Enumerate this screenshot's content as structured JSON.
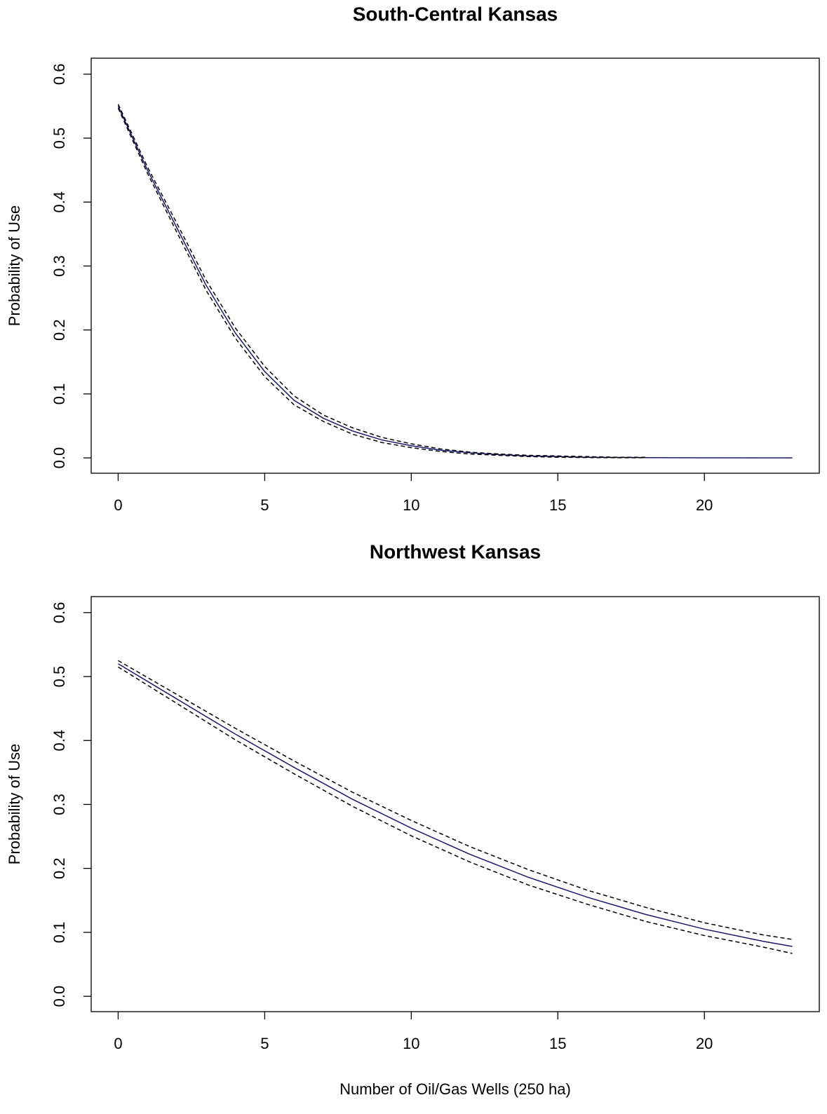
{
  "chart_data": [
    {
      "type": "line",
      "title": "South-Central Kansas",
      "y_label": "Probability of Use",
      "x": [
        0,
        1,
        2,
        3,
        4,
        5,
        6,
        7,
        8,
        9,
        10,
        11,
        12,
        13,
        14,
        15,
        16,
        17,
        18,
        20,
        23
      ],
      "series": [
        {
          "color": "#191970",
          "linestyle": "solid",
          "values": [
            0.55,
            0.45,
            0.36,
            0.27,
            0.195,
            0.135,
            0.09,
            0.062,
            0.042,
            0.028,
            0.019,
            0.012,
            0.008,
            0.005,
            0.003,
            0.002,
            0.001,
            0.0007,
            0.0004,
            0.0001,
            0
          ]
        },
        {
          "color": "#000000",
          "linestyle": "dashed",
          "values": [
            0.553,
            0.455,
            0.367,
            0.278,
            0.203,
            0.143,
            0.097,
            0.067,
            0.047,
            0.032,
            0.022,
            0.014,
            0.009,
            0.006,
            0.004,
            0.003,
            0.002,
            0.001,
            0.001,
            null,
            null
          ]
        },
        {
          "color": "#000000",
          "linestyle": "dashed",
          "values": [
            0.547,
            0.445,
            0.353,
            0.262,
            0.187,
            0.127,
            0.083,
            0.057,
            0.037,
            0.024,
            0.016,
            0.01,
            0.006,
            0.004,
            0.002,
            0.001,
            0.0005,
            0.0003,
            0.0002,
            null,
            null
          ]
        }
      ],
      "xlim": [
        -0.92,
        23.92
      ],
      "xticks": [
        0,
        5,
        10,
        15,
        20
      ],
      "ylim": [
        -0.024,
        0.625
      ],
      "yticks": [
        {
          "value": 0,
          "label": "0.0"
        },
        {
          "value": 0.1,
          "label": "0.1"
        },
        {
          "value": 0.2,
          "label": "0.2"
        },
        {
          "value": 0.3,
          "label": "0.3"
        },
        {
          "value": 0.4,
          "label": "0.4"
        },
        {
          "value": 0.5,
          "label": "0.5"
        },
        {
          "value": 0.6,
          "label": "0.6"
        }
      ]
    },
    {
      "type": "line",
      "title": "Northwest Kansas",
      "y_label": "Probability of Use",
      "x_label": "Number of Oil/Gas Wells (250 ha)",
      "x": [
        0,
        2,
        4,
        6,
        8,
        10,
        12,
        14,
        16,
        18,
        20,
        22,
        23
      ],
      "series": [
        {
          "color": "#191970",
          "linestyle": "solid",
          "values": [
            0.52,
            0.465,
            0.41,
            0.358,
            0.308,
            0.263,
            0.222,
            0.186,
            0.155,
            0.128,
            0.105,
            0.086,
            0.078
          ]
        },
        {
          "color": "#000000",
          "linestyle": "dashed",
          "values": [
            0.525,
            0.472,
            0.419,
            0.368,
            0.319,
            0.275,
            0.234,
            0.198,
            0.166,
            0.139,
            0.115,
            0.096,
            0.089
          ]
        },
        {
          "color": "#000000",
          "linestyle": "dashed",
          "values": [
            0.515,
            0.458,
            0.401,
            0.348,
            0.297,
            0.251,
            0.21,
            0.174,
            0.144,
            0.117,
            0.095,
            0.077,
            0.067
          ]
        }
      ],
      "xlim": [
        -0.92,
        23.92
      ],
      "xticks": [
        0,
        5,
        10,
        15,
        20
      ],
      "ylim": [
        -0.024,
        0.625
      ],
      "yticks": [
        {
          "value": 0,
          "label": "0.0"
        },
        {
          "value": 0.1,
          "label": "0.1"
        },
        {
          "value": 0.2,
          "label": "0.2"
        },
        {
          "value": 0.3,
          "label": "0.3"
        },
        {
          "value": 0.4,
          "label": "0.4"
        },
        {
          "value": 0.5,
          "label": "0.5"
        },
        {
          "value": 0.6,
          "label": "0.6"
        }
      ]
    }
  ]
}
